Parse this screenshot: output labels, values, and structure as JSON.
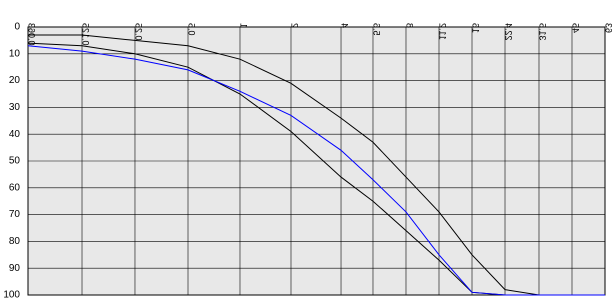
{
  "chart_data": {
    "type": "line",
    "categories": [
      "0.063",
      "0.125",
      "0.25",
      "0.5",
      "1",
      "2",
      "4",
      "5.6",
      "8",
      "11.2",
      "16",
      "22.4",
      "31.5",
      "45",
      "63"
    ],
    "series": [
      {
        "color": "#000000",
        "values": [
          3,
          3,
          5,
          7,
          12,
          21,
          34,
          43,
          56,
          69,
          85,
          98,
          100,
          100,
          100
        ]
      },
      {
        "color": "#000000",
        "values": [
          6,
          7,
          10,
          15,
          25,
          39,
          56,
          65,
          76,
          87,
          99,
          100,
          100,
          100,
          100
        ]
      },
      {
        "color": "#0000ff",
        "values": [
          7,
          9,
          12,
          16,
          24,
          33,
          46,
          57,
          69,
          85,
          99,
          100,
          100,
          100,
          100
        ]
      }
    ],
    "ylim": [
      0,
      100
    ],
    "yticks": [
      0,
      10,
      20,
      30,
      40,
      50,
      60,
      70,
      80,
      90,
      100
    ],
    "y_reversed": true,
    "grid": true
  }
}
